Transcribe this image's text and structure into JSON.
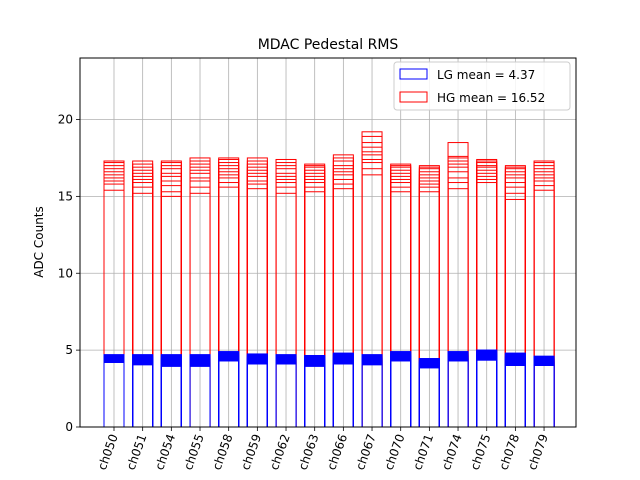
{
  "chart_data": {
    "type": "bar",
    "title": "MDAC Pedestal RMS",
    "xlabel": "",
    "ylabel": "ADC Counts",
    "ylim": [
      0,
      24
    ],
    "yticks": [
      0,
      5,
      10,
      15,
      20
    ],
    "grid": true,
    "legend_position": "top-right",
    "categories": [
      "ch050",
      "ch051",
      "ch054",
      "ch055",
      "ch058",
      "ch059",
      "ch062",
      "ch063",
      "ch066",
      "ch067",
      "ch070",
      "ch071",
      "ch074",
      "ch075",
      "ch078",
      "ch079"
    ],
    "series": [
      {
        "name": "LG mean = 4.37",
        "color": "#0000ff",
        "style": "stacked-outline-low",
        "values": [
          [
            4.2,
            4.3,
            4.35,
            4.4,
            4.45,
            4.5,
            4.55,
            4.6,
            4.65,
            4.7
          ],
          [
            4.05,
            4.15,
            4.25,
            4.3,
            4.35,
            4.45,
            4.5,
            4.55,
            4.6,
            4.7
          ],
          [
            3.95,
            4.05,
            4.15,
            4.25,
            4.3,
            4.4,
            4.45,
            4.5,
            4.6,
            4.7
          ],
          [
            3.95,
            4.1,
            4.2,
            4.3,
            4.35,
            4.4,
            4.5,
            4.55,
            4.6,
            4.7
          ],
          [
            4.3,
            4.4,
            4.45,
            4.5,
            4.55,
            4.6,
            4.65,
            4.7,
            4.8,
            4.9
          ],
          [
            4.1,
            4.2,
            4.3,
            4.35,
            4.4,
            4.45,
            4.5,
            4.6,
            4.65,
            4.75
          ],
          [
            4.1,
            4.2,
            4.25,
            4.3,
            4.35,
            4.4,
            4.5,
            4.55,
            4.6,
            4.7
          ],
          [
            3.95,
            4.05,
            4.15,
            4.2,
            4.3,
            4.35,
            4.4,
            4.5,
            4.55,
            4.65
          ],
          [
            4.1,
            4.2,
            4.3,
            4.4,
            4.45,
            4.5,
            4.55,
            4.65,
            4.7,
            4.8
          ],
          [
            4.05,
            4.15,
            4.25,
            4.3,
            4.35,
            4.4,
            4.45,
            4.5,
            4.55,
            4.7
          ],
          [
            4.3,
            4.4,
            4.45,
            4.5,
            4.55,
            4.6,
            4.65,
            4.7,
            4.8,
            4.9
          ],
          [
            3.85,
            3.95,
            4.05,
            4.1,
            4.15,
            4.2,
            4.25,
            4.3,
            4.35,
            4.45
          ],
          [
            4.3,
            4.4,
            4.45,
            4.5,
            4.55,
            4.6,
            4.65,
            4.7,
            4.8,
            4.9
          ],
          [
            4.35,
            4.45,
            4.5,
            4.55,
            4.6,
            4.65,
            4.7,
            4.8,
            4.9,
            5.0
          ],
          [
            4.0,
            4.15,
            4.25,
            4.35,
            4.4,
            4.5,
            4.55,
            4.6,
            4.7,
            4.8
          ],
          [
            4.0,
            4.1,
            4.2,
            4.25,
            4.3,
            4.35,
            4.4,
            4.45,
            4.5,
            4.6
          ]
        ]
      },
      {
        "name": "HG mean = 16.52",
        "color": "#ff0000",
        "style": "stacked-outline-high",
        "values": [
          [
            15.4,
            15.8,
            16.0,
            16.2,
            16.4,
            16.6,
            16.8,
            17.0,
            17.2,
            17.3
          ],
          [
            15.2,
            15.6,
            15.9,
            16.1,
            16.3,
            16.5,
            16.7,
            16.9,
            17.1,
            17.3
          ],
          [
            15.0,
            15.3,
            15.7,
            16.0,
            16.3,
            16.5,
            16.8,
            17.0,
            17.2,
            17.3
          ],
          [
            15.2,
            15.6,
            16.0,
            16.2,
            16.5,
            16.7,
            16.9,
            17.1,
            17.3,
            17.5
          ],
          [
            15.6,
            15.9,
            16.2,
            16.4,
            16.6,
            16.8,
            17.0,
            17.2,
            17.4,
            17.5
          ],
          [
            15.5,
            15.8,
            16.0,
            16.3,
            16.5,
            16.7,
            16.9,
            17.1,
            17.3,
            17.5
          ],
          [
            15.2,
            15.6,
            15.9,
            16.1,
            16.3,
            16.5,
            16.8,
            17.0,
            17.2,
            17.4
          ],
          [
            15.3,
            15.6,
            15.9,
            16.1,
            16.3,
            16.5,
            16.7,
            16.9,
            17.0,
            17.1
          ],
          [
            15.5,
            15.8,
            16.1,
            16.4,
            16.6,
            16.8,
            17.0,
            17.3,
            17.5,
            17.7
          ],
          [
            16.4,
            16.8,
            17.2,
            17.4,
            17.7,
            17.9,
            18.2,
            18.5,
            18.9,
            19.2
          ],
          [
            15.3,
            15.6,
            15.9,
            16.1,
            16.3,
            16.5,
            16.7,
            16.9,
            17.0,
            17.1
          ],
          [
            15.3,
            15.6,
            15.8,
            16.0,
            16.2,
            16.4,
            16.6,
            16.8,
            16.9,
            17.0
          ],
          [
            15.5,
            15.9,
            16.2,
            16.6,
            16.9,
            17.1,
            17.3,
            17.5,
            17.6,
            18.5
          ],
          [
            15.9,
            16.1,
            16.3,
            16.5,
            16.7,
            16.9,
            17.0,
            17.2,
            17.3,
            17.4
          ],
          [
            14.8,
            15.2,
            15.6,
            15.9,
            16.2,
            16.4,
            16.6,
            16.8,
            16.9,
            17.0
          ],
          [
            15.4,
            15.7,
            16.0,
            16.2,
            16.4,
            16.6,
            16.8,
            17.0,
            17.2,
            17.3
          ]
        ]
      }
    ]
  }
}
